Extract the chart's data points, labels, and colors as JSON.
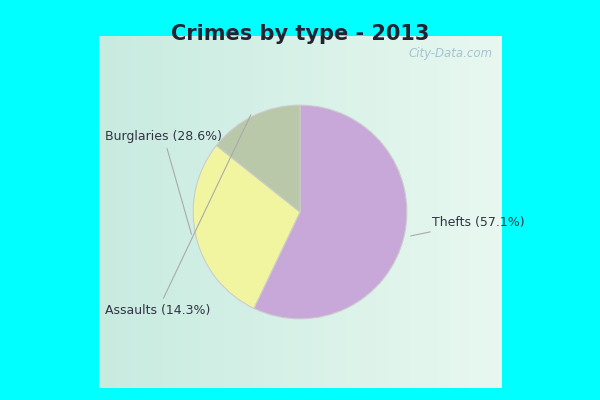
{
  "title": "Crimes by type - 2013",
  "labels": [
    "Thefts",
    "Burglaries",
    "Assaults"
  ],
  "values": [
    57.1,
    28.6,
    14.3
  ],
  "colors": [
    "#c8a8d8",
    "#f2f5a0",
    "#b8c8a8"
  ],
  "border_color": "#00ffff",
  "inner_bg_top_left": "#c8ebe0",
  "inner_bg_bottom_right": "#e8f5f0",
  "title_fontsize": 15,
  "title_color": "#222233",
  "annotation_fontsize": 9,
  "annotation_color": "#333344",
  "watermark": "City-Data.com",
  "watermark_color": "#99bbcc",
  "border_width": 8
}
